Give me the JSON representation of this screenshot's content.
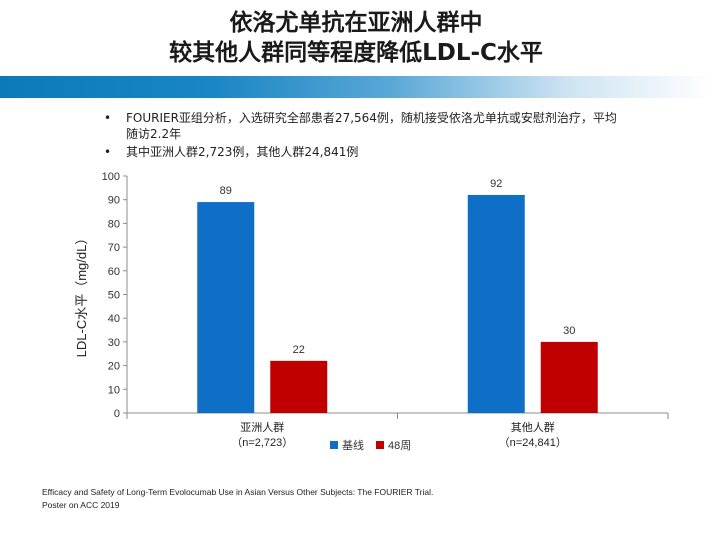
{
  "title": {
    "line1": "依洛尤单抗在亚洲人群中",
    "line2": "较其他人群同等程度降低LDL-C水平"
  },
  "bullets": [
    {
      "marker": "•",
      "text": "FOURIER亚组分析，入选研究全部患者27,564例，随机接受依洛尤单抗或安慰剂治疗，平均随访2.2年"
    },
    {
      "marker": "•",
      "text": "其中亚洲人群2,723例，其他人群24,841例"
    }
  ],
  "chart_data": {
    "type": "bar",
    "categories": [
      "亚洲人群",
      "其他人群"
    ],
    "category_sublabels": [
      "（n=2,723）",
      "（n=24,841）"
    ],
    "series": [
      {
        "name": "基线",
        "values": [
          89,
          92
        ],
        "color": "#0f6fc6"
      },
      {
        "name": "48周",
        "values": [
          22,
          30
        ],
        "color": "#c00000"
      }
    ],
    "ylabel": "LDL-C水平（mg/dL）",
    "xlabel": "",
    "ylim": [
      0,
      100
    ],
    "yticks": [
      0,
      10,
      20,
      30,
      40,
      50,
      60,
      70,
      80,
      90,
      100
    ],
    "grid": false,
    "legend_position": "bottom"
  },
  "footnote": {
    "line1": "Efficacy and Safety of Long-Term Evolocumab Use in Asian Versus Other Subjects: The FOURIER Trial.",
    "line2": "Poster on ACC 2019"
  }
}
